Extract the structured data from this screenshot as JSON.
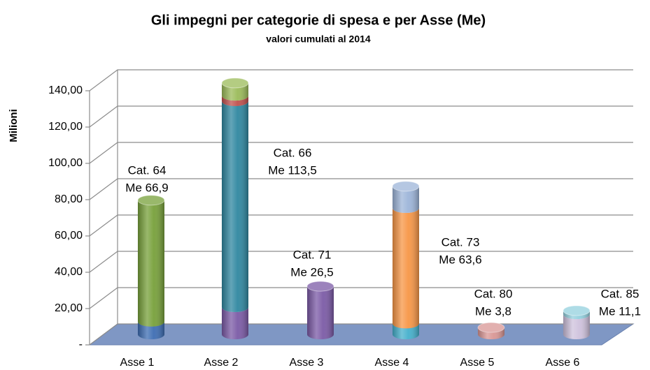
{
  "chart_data": {
    "type": "bar3d-stacked",
    "title": "Gli impegni per categorie di spesa e per Asse (Me)",
    "subtitle": "valori cumulati al 2014",
    "y_label": "Milioni",
    "categories": [
      "Asse 1",
      "Asse 2",
      "Asse 3",
      "Asse 4",
      "Asse 5",
      "Asse 6"
    ],
    "series": [
      {
        "color": "#3d6db3",
        "values": [
          7,
          null,
          null,
          null,
          null,
          null
        ]
      },
      {
        "color": "#7b5aa6",
        "values": [
          null,
          15,
          26.5,
          null,
          null,
          null
        ]
      },
      {
        "color": "#77a03a",
        "values": [
          66.9,
          null,
          null,
          null,
          null,
          null
        ]
      },
      {
        "color": "#2f87a0",
        "values": [
          null,
          113.5,
          null,
          null,
          null,
          null
        ]
      },
      {
        "color": "#c0504d",
        "values": [
          null,
          3,
          null,
          null,
          null,
          null
        ]
      },
      {
        "color": "#9bbb59",
        "values": [
          null,
          7,
          null,
          null,
          null,
          null
        ]
      },
      {
        "color": "#45b0cc",
        "values": [
          null,
          null,
          null,
          6,
          null,
          null
        ]
      },
      {
        "color": "#f79646",
        "values": [
          null,
          null,
          null,
          63.6,
          null,
          null
        ]
      },
      {
        "color": "#9db5d9",
        "values": [
          null,
          null,
          null,
          12,
          null,
          null
        ]
      },
      {
        "color": "#d99694",
        "values": [
          null,
          null,
          null,
          null,
          3.8,
          null
        ]
      },
      {
        "color": "#cfc2dd",
        "values": [
          null,
          null,
          null,
          null,
          null,
          11.1
        ]
      },
      {
        "color": "#93d0de",
        "values": [
          null,
          null,
          null,
          null,
          null,
          2
        ]
      }
    ],
    "annotations": [
      {
        "lines": [
          "Cat. 64",
          "Me 66,9"
        ]
      },
      {
        "lines": [
          "Cat. 66",
          "Me 113,5"
        ]
      },
      {
        "lines": [
          "Cat. 71",
          "Me 26,5"
        ]
      },
      {
        "lines": [
          "Cat. 73",
          "Me 63,6"
        ]
      },
      {
        "lines": [
          "Cat. 80",
          "Me 3,8"
        ]
      },
      {
        "lines": [
          "Cat. 85",
          "Me 11,1"
        ]
      }
    ],
    "ylim": [
      0,
      140
    ],
    "yticks": [
      {
        "value": 0,
        "label": "-"
      },
      {
        "value": 20,
        "label": "20,00"
      },
      {
        "value": 40,
        "label": "40,00"
      },
      {
        "value": 60,
        "label": "60,00"
      },
      {
        "value": 80,
        "label": "80,00"
      },
      {
        "value": 100,
        "label": "100,00"
      },
      {
        "value": 120,
        "label": "120,00"
      },
      {
        "value": 140,
        "label": "140,00"
      }
    ],
    "grid": true
  }
}
